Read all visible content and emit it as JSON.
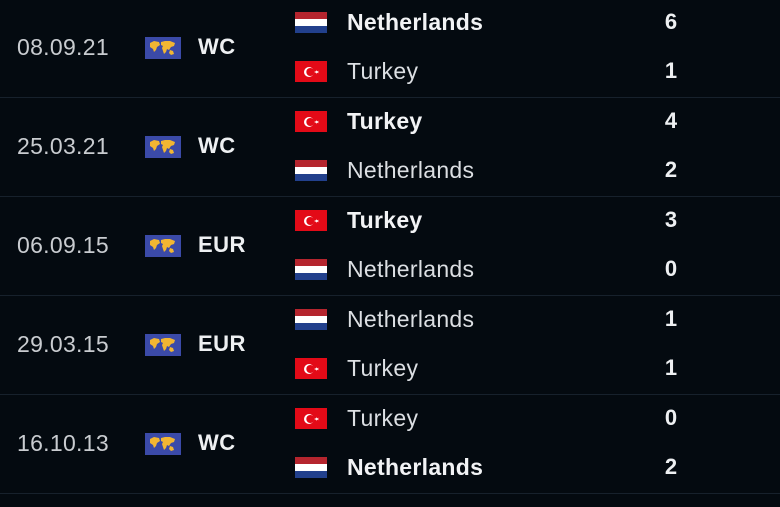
{
  "colors": {
    "background": "#040a10",
    "competition_icon": "#3b4aa8",
    "turkey_red": "#e30a17"
  },
  "matches": [
    {
      "date": "08.09.21",
      "competition": "WC",
      "competition_icon": "world-map-icon",
      "home": {
        "name": "Netherlands",
        "flag": "netherlands-flag",
        "score": "6",
        "winner": true
      },
      "away": {
        "name": "Turkey",
        "flag": "turkey-flag",
        "score": "1",
        "winner": false
      }
    },
    {
      "date": "25.03.21",
      "competition": "WC",
      "competition_icon": "world-map-icon",
      "home": {
        "name": "Turkey",
        "flag": "turkey-flag",
        "score": "4",
        "winner": true
      },
      "away": {
        "name": "Netherlands",
        "flag": "netherlands-flag",
        "score": "2",
        "winner": false
      }
    },
    {
      "date": "06.09.15",
      "competition": "EUR",
      "competition_icon": "world-map-icon",
      "home": {
        "name": "Turkey",
        "flag": "turkey-flag",
        "score": "3",
        "winner": true
      },
      "away": {
        "name": "Netherlands",
        "flag": "netherlands-flag",
        "score": "0",
        "winner": false
      }
    },
    {
      "date": "29.03.15",
      "competition": "EUR",
      "competition_icon": "world-map-icon",
      "home": {
        "name": "Netherlands",
        "flag": "netherlands-flag",
        "score": "1",
        "winner": false
      },
      "away": {
        "name": "Turkey",
        "flag": "turkey-flag",
        "score": "1",
        "winner": false
      }
    },
    {
      "date": "16.10.13",
      "competition": "WC",
      "competition_icon": "world-map-icon",
      "home": {
        "name": "Turkey",
        "flag": "turkey-flag",
        "score": "0",
        "winner": false
      },
      "away": {
        "name": "Netherlands",
        "flag": "netherlands-flag",
        "score": "2",
        "winner": true
      }
    }
  ]
}
